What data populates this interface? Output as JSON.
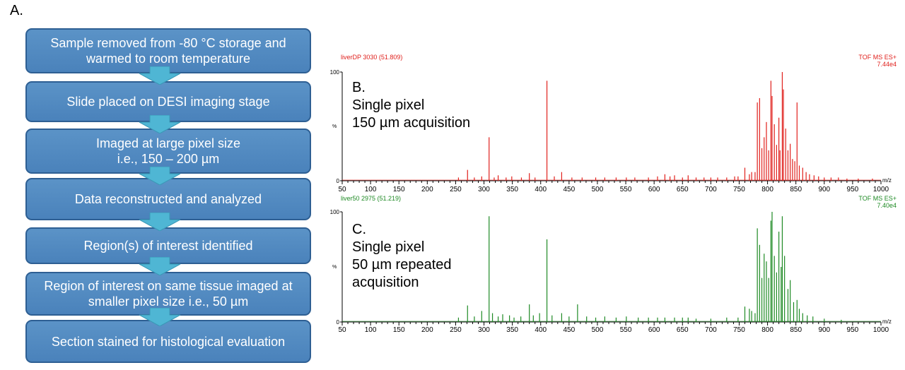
{
  "panel_a": {
    "label": "A.",
    "steps": [
      "Sample removed from -80 °C storage and\nwarmed to room temperature",
      "Slide placed on DESI imaging stage",
      "Imaged at large pixel size\ni.e., 150 – 200 µm",
      "Data reconstructed and analyzed",
      "Region(s) of interest identified",
      "Region of interest on same tissue imaged at\nsmaller pixel size i.e., 50 µm",
      "Section stained for histological evaluation"
    ]
  },
  "chart_data": [
    {
      "type": "line",
      "panel_label": "B.\nSingle pixel\n150 µm acquisition",
      "header_left": "liverDP 3030 (51.809)",
      "header_right_1": "TOF MS ES+",
      "header_right_2": "7.44e4",
      "color": "#e0201c",
      "xlabel": "m/z",
      "ylabel": "%",
      "xlim": [
        50,
        1000
      ],
      "ylim": [
        0,
        100
      ],
      "x_ticks": [
        50,
        100,
        150,
        200,
        250,
        300,
        350,
        400,
        450,
        500,
        550,
        600,
        650,
        700,
        750,
        800,
        850,
        900,
        950,
        1000
      ],
      "y_ticks": [
        0,
        100
      ],
      "peaks": [
        [
          255,
          3
        ],
        [
          271,
          10
        ],
        [
          283,
          3
        ],
        [
          296,
          4
        ],
        [
          309,
          40
        ],
        [
          318,
          3
        ],
        [
          325,
          5
        ],
        [
          339,
          3
        ],
        [
          349,
          4
        ],
        [
          366,
          3
        ],
        [
          380,
          7
        ],
        [
          390,
          3
        ],
        [
          411,
          92
        ],
        [
          424,
          4
        ],
        [
          437,
          8
        ],
        [
          455,
          3
        ],
        [
          473,
          3
        ],
        [
          497,
          3
        ],
        [
          513,
          3
        ],
        [
          533,
          3
        ],
        [
          551,
          3
        ],
        [
          566,
          3
        ],
        [
          590,
          3
        ],
        [
          606,
          4
        ],
        [
          619,
          6
        ],
        [
          628,
          4
        ],
        [
          636,
          5
        ],
        [
          650,
          3
        ],
        [
          660,
          5
        ],
        [
          674,
          3
        ],
        [
          688,
          3
        ],
        [
          700,
          3
        ],
        [
          712,
          3
        ],
        [
          728,
          3
        ],
        [
          742,
          4
        ],
        [
          748,
          4
        ],
        [
          760,
          12
        ],
        [
          768,
          6
        ],
        [
          772,
          8
        ],
        [
          778,
          8
        ],
        [
          782,
          72
        ],
        [
          786,
          76
        ],
        [
          790,
          30
        ],
        [
          794,
          40
        ],
        [
          798,
          54
        ],
        [
          802,
          28
        ],
        [
          806,
          92
        ],
        [
          808,
          78
        ],
        [
          812,
          52
        ],
        [
          816,
          33
        ],
        [
          820,
          58
        ],
        [
          822,
          28
        ],
        [
          826,
          100
        ],
        [
          828,
          84
        ],
        [
          832,
          48
        ],
        [
          836,
          28
        ],
        [
          840,
          34
        ],
        [
          844,
          20
        ],
        [
          848,
          18
        ],
        [
          852,
          72
        ],
        [
          856,
          14
        ],
        [
          862,
          12
        ],
        [
          868,
          8
        ],
        [
          874,
          6
        ],
        [
          882,
          5
        ],
        [
          890,
          4
        ],
        [
          900,
          3
        ],
        [
          912,
          3
        ],
        [
          925,
          3
        ],
        [
          940,
          2
        ],
        [
          960,
          2
        ],
        [
          985,
          2
        ]
      ]
    },
    {
      "type": "line",
      "panel_label": "C.\nSingle pixel\n50 µm repeated\nacquisition",
      "header_left": "liver50 2975 (51.219)",
      "header_right_1": "TOF MS ES+",
      "header_right_2": "7.40e4",
      "color": "#1e8a24",
      "xlabel": "m/z",
      "ylabel": "%",
      "xlim": [
        50,
        1000
      ],
      "ylim": [
        0,
        100
      ],
      "x_ticks": [
        50,
        100,
        150,
        200,
        250,
        300,
        350,
        400,
        450,
        500,
        550,
        600,
        650,
        700,
        750,
        800,
        850,
        900,
        950,
        1000
      ],
      "y_ticks": [
        0,
        100
      ],
      "peaks": [
        [
          255,
          4
        ],
        [
          271,
          15
        ],
        [
          283,
          5
        ],
        [
          296,
          10
        ],
        [
          309,
          96
        ],
        [
          315,
          8
        ],
        [
          325,
          5
        ],
        [
          333,
          7
        ],
        [
          345,
          6
        ],
        [
          353,
          4
        ],
        [
          365,
          5
        ],
        [
          380,
          16
        ],
        [
          387,
          6
        ],
        [
          398,
          8
        ],
        [
          411,
          75
        ],
        [
          420,
          6
        ],
        [
          437,
          8
        ],
        [
          450,
          5
        ],
        [
          465,
          16
        ],
        [
          481,
          5
        ],
        [
          497,
          4
        ],
        [
          513,
          5
        ],
        [
          533,
          4
        ],
        [
          551,
          5
        ],
        [
          572,
          4
        ],
        [
          590,
          4
        ],
        [
          606,
          4
        ],
        [
          619,
          4
        ],
        [
          636,
          4
        ],
        [
          650,
          4
        ],
        [
          660,
          4
        ],
        [
          674,
          3
        ],
        [
          700,
          3
        ],
        [
          728,
          4
        ],
        [
          748,
          4
        ],
        [
          760,
          14
        ],
        [
          768,
          12
        ],
        [
          772,
          10
        ],
        [
          778,
          8
        ],
        [
          782,
          85
        ],
        [
          786,
          70
        ],
        [
          790,
          40
        ],
        [
          794,
          62
        ],
        [
          798,
          55
        ],
        [
          802,
          40
        ],
        [
          806,
          92
        ],
        [
          808,
          100
        ],
        [
          812,
          60
        ],
        [
          816,
          45
        ],
        [
          820,
          82
        ],
        [
          824,
          50
        ],
        [
          826,
          96
        ],
        [
          830,
          60
        ],
        [
          836,
          30
        ],
        [
          840,
          38
        ],
        [
          846,
          18
        ],
        [
          852,
          20
        ],
        [
          856,
          12
        ],
        [
          862,
          8
        ],
        [
          870,
          6
        ],
        [
          880,
          5
        ],
        [
          900,
          3
        ],
        [
          930,
          2
        ]
      ]
    }
  ]
}
